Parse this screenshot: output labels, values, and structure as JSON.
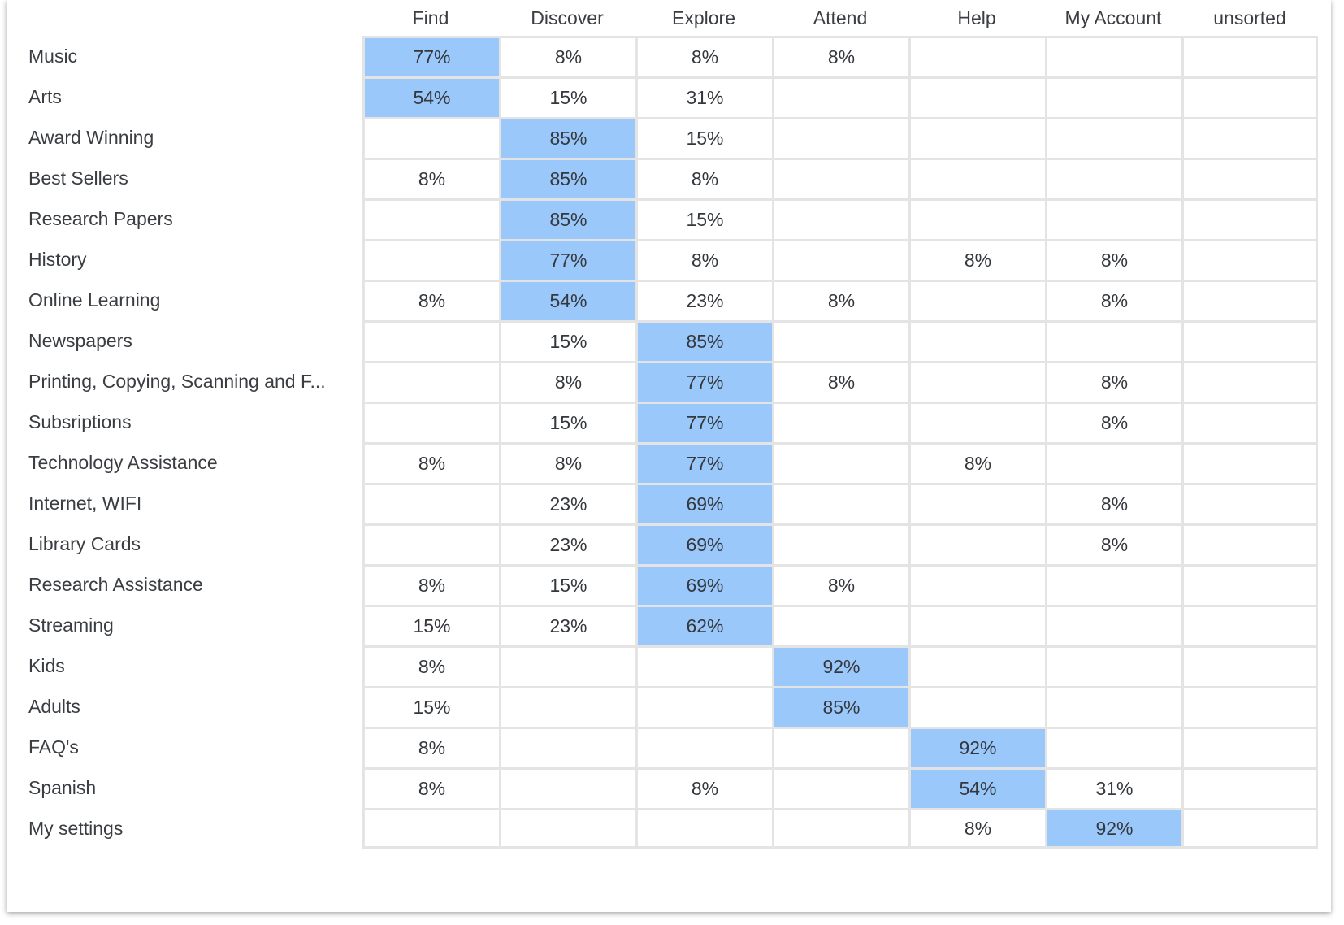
{
  "columns": [
    "Find",
    "Discover",
    "Explore",
    "Attend",
    "Help",
    "My Account",
    "unsorted"
  ],
  "highlight_color": "#9ac8fa",
  "rows": [
    {
      "label": "Music",
      "cells": [
        "77%",
        "8%",
        "8%",
        "8%",
        "",
        "",
        ""
      ],
      "top": 0
    },
    {
      "label": "Arts",
      "cells": [
        "54%",
        "15%",
        "31%",
        "",
        "",
        "",
        ""
      ],
      "top": 0
    },
    {
      "label": "Award Winning",
      "cells": [
        "",
        "85%",
        "15%",
        "",
        "",
        "",
        ""
      ],
      "top": 1
    },
    {
      "label": "Best Sellers",
      "cells": [
        "8%",
        "85%",
        "8%",
        "",
        "",
        "",
        ""
      ],
      "top": 1
    },
    {
      "label": "Research Papers",
      "cells": [
        "",
        "85%",
        "15%",
        "",
        "",
        "",
        ""
      ],
      "top": 1
    },
    {
      "label": "History",
      "cells": [
        "",
        "77%",
        "8%",
        "",
        "8%",
        "8%",
        ""
      ],
      "top": 1
    },
    {
      "label": "Online Learning",
      "cells": [
        "8%",
        "54%",
        "23%",
        "8%",
        "",
        "8%",
        ""
      ],
      "top": 1
    },
    {
      "label": "Newspapers",
      "cells": [
        "",
        "15%",
        "85%",
        "",
        "",
        "",
        ""
      ],
      "top": 2
    },
    {
      "label": "Printing, Copying, Scanning and F...",
      "cells": [
        "",
        "8%",
        "77%",
        "8%",
        "",
        "8%",
        ""
      ],
      "top": 2
    },
    {
      "label": "Subsriptions",
      "cells": [
        "",
        "15%",
        "77%",
        "",
        "",
        "8%",
        ""
      ],
      "top": 2
    },
    {
      "label": "Technology Assistance",
      "cells": [
        "8%",
        "8%",
        "77%",
        "",
        "8%",
        "",
        ""
      ],
      "top": 2
    },
    {
      "label": "Internet, WIFI",
      "cells": [
        "",
        "23%",
        "69%",
        "",
        "",
        "8%",
        ""
      ],
      "top": 2
    },
    {
      "label": "Library Cards",
      "cells": [
        "",
        "23%",
        "69%",
        "",
        "",
        "8%",
        ""
      ],
      "top": 2
    },
    {
      "label": "Research Assistance",
      "cells": [
        "8%",
        "15%",
        "69%",
        "8%",
        "",
        "",
        ""
      ],
      "top": 2
    },
    {
      "label": "Streaming",
      "cells": [
        "15%",
        "23%",
        "62%",
        "",
        "",
        "",
        ""
      ],
      "top": 2
    },
    {
      "label": "Kids",
      "cells": [
        "8%",
        "",
        "",
        "92%",
        "",
        "",
        ""
      ],
      "top": 3
    },
    {
      "label": "Adults",
      "cells": [
        "15%",
        "",
        "",
        "85%",
        "",
        "",
        ""
      ],
      "top": 3
    },
    {
      "label": "FAQ's",
      "cells": [
        "8%",
        "",
        "",
        "",
        "92%",
        "",
        ""
      ],
      "top": 4
    },
    {
      "label": "Spanish",
      "cells": [
        "8%",
        "",
        "8%",
        "",
        "54%",
        "31%",
        ""
      ],
      "top": 4
    },
    {
      "label": "My settings",
      "cells": [
        "",
        "",
        "",
        "",
        "8%",
        "92%",
        ""
      ],
      "top": 5
    }
  ]
}
